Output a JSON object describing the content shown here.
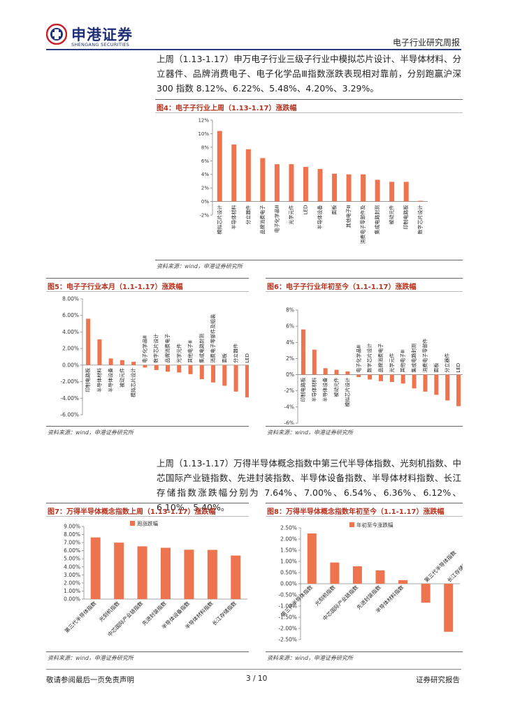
{
  "header": {
    "brand_zh": "申港证券",
    "brand_en": "SHENGANG SECURITIES",
    "report_type": "电子行业研究周报"
  },
  "paragraph1": "上周（1.13-1.17）申万电子行业三级子行业中模拟芯片设计、半导体材料、分立器件、品牌消费电子、电子化学品Ⅲ指数涨跌表现相对靠前，分别跑赢沪深 300 指数 8.12%、6.22%、5.48%、4.20%、3.29%。",
  "paragraph2": "上周（1.13-1.17）万得半导体概念指数中第三代半导体指数、光刻机指数、中芯国际产业链指数、先进封装指数、半导体设备指数、半导体材料指数、长江存储指数涨跌幅分别为 7.64%、7.00%、6.54%、6.36%、6.12%、6.10%、5.40%。",
  "figures": {
    "fig4": {
      "title": "图4：电子子行业上周（1.13-1.17）涨跌幅",
      "source": "资料来源：wind，申港证券研究所"
    },
    "fig5": {
      "title": "图5：电子子行业本月（1.1-1.17）涨跌幅",
      "source": "资料来源：wind，申港证券研究所"
    },
    "fig6": {
      "title": "图6：电子子行业年初至今（1.1-1.17）涨跌幅",
      "source": "资料来源：wind，申港证券研究所"
    },
    "fig7": {
      "title": "图7：万得半导体概念指数上周（1.13-1.17）涨跌幅",
      "source": "资料来源：wind，申港证券研究所"
    },
    "fig8": {
      "title": "图8：万得半导体概念指数年初至今（1.1-1.17）涨跌幅",
      "source": "资料来源：wind，申港证券研究所"
    }
  },
  "footer": {
    "disclaimer": "敬请参阅最后一页免责声明",
    "page": "3 / 10",
    "doc_type": "证券研究报告"
  },
  "colors": {
    "bar": "#ee7450",
    "brand": "#1f2f78",
    "fig_title": "#b5321e"
  },
  "chart_data": [
    {
      "id": "fig4",
      "type": "bar",
      "categories": [
        "模拟芯片设计",
        "半导体材料",
        "分立器件",
        "品牌消费电子",
        "电子化学品Ⅲ",
        "光学元件",
        "LED",
        "半导体设备",
        "面板",
        "其他电子Ⅲ",
        "消费电子零部件及",
        "集成电路封测",
        "被动元件",
        "印制电路板",
        "数字芯片设计"
      ],
      "values": [
        10.4,
        8.4,
        7.7,
        6.4,
        5.5,
        5.5,
        5.1,
        4.8,
        4.1,
        4.0,
        4.0,
        3.2,
        2.9,
        2.9,
        0.1
      ],
      "yticks": [
        "12%",
        "10%",
        "8%",
        "6%",
        "4%",
        "2%",
        "0%",
        "-2%"
      ],
      "ylim": [
        -2,
        12
      ]
    },
    {
      "id": "fig5",
      "type": "bar",
      "categories": [
        "印制电路板",
        "半导体材料",
        "半导体设备",
        "被动元件",
        "模拟芯片设计",
        "电子化学品Ⅲ",
        "数字芯片设计",
        "品牌消费电子",
        "光学元件",
        "其他电子Ⅲ",
        "集成电路封测",
        "消费电子零部件及组装",
        "面板",
        "分立器件",
        "LED"
      ],
      "values": [
        5.6,
        3.1,
        0.8,
        0.6,
        0.4,
        -0.3,
        -0.6,
        -0.8,
        -0.9,
        -1.1,
        -1.7,
        -2.1,
        -2.5,
        -3.2,
        -3.9
      ],
      "yticks": [
        "8.00%",
        "6.00%",
        "4.00%",
        "2.00%",
        "0.00%",
        "-2.00%",
        "-4.00%",
        "-6.00%"
      ],
      "ylim": [
        -6,
        8
      ]
    },
    {
      "id": "fig6",
      "type": "bar",
      "categories": [
        "印制电路板",
        "半导体材料",
        "半导体设备",
        "被动元件",
        "模拟芯片设计",
        "电子化学品Ⅲ",
        "数字芯片设计",
        "品牌消费电子",
        "光学元件",
        "其他电子Ⅲ",
        "集成电路封测",
        "消费电子零部件",
        "面板",
        "分立器件",
        "LED"
      ],
      "values": [
        5.6,
        3.1,
        0.8,
        0.6,
        0.4,
        -0.3,
        -0.6,
        -0.8,
        -0.9,
        -1.1,
        -1.7,
        -2.1,
        -2.5,
        -3.2,
        -3.9
      ],
      "yticks": [
        "8%",
        "6%",
        "4%",
        "2%",
        "0%",
        "-2%",
        "-4%",
        "-6%"
      ],
      "ylim": [
        -6,
        8
      ]
    },
    {
      "id": "fig7",
      "type": "bar",
      "categories": [
        "第三代半导体指数",
        "光刻机指数",
        "中芯国际产业链指数",
        "先进封装指数",
        "半导体设备指数",
        "半导体材料指数",
        "长江存储指数"
      ],
      "values": [
        7.64,
        7.0,
        6.54,
        6.36,
        6.12,
        6.1,
        5.4
      ],
      "legend": "周涨跌幅",
      "yticks": [
        "9.00%",
        "8.00%",
        "7.00%",
        "6.00%",
        "5.00%",
        "4.00%",
        "3.00%",
        "2.00%",
        "1.00%",
        "0.00%"
      ],
      "ylim": [
        0,
        9
      ]
    },
    {
      "id": "fig8",
      "type": "bar",
      "categories": [
        "第三代半导体指数",
        "光刻机指数",
        "中芯国际产业链指数",
        "先进封装指数",
        "半导体材料指数",
        "第三代半导体指数",
        "长江存储指数"
      ],
      "values": [
        2.25,
        0.95,
        0.78,
        0.6,
        0.16,
        -0.85,
        -2.15
      ],
      "legend": "年初至今涨跌幅",
      "yticks": [
        "2.50%",
        "2.00%",
        "1.50%",
        "1.00%",
        "0.50%",
        "0.00%",
        "-0.50%",
        "-1.00%",
        "-1.50%",
        "-2.00%",
        "-2.50%"
      ],
      "ylim": [
        -2.5,
        2.5
      ]
    }
  ]
}
